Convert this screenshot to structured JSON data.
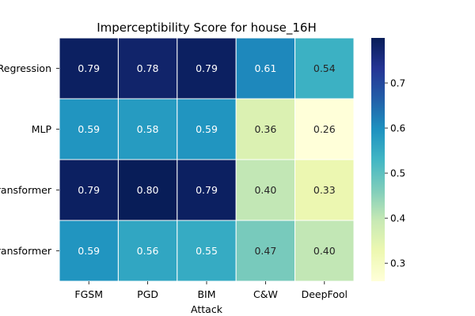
{
  "chart_data": {
    "type": "heatmap",
    "title": "Imperceptibility Score for house_16H",
    "xlabel": "Attack",
    "ylabel": "",
    "x_categories": [
      "FGSM",
      "PGD",
      "BIM",
      "C&W",
      "DeepFool"
    ],
    "y_categories": [
      "Logistic Regression",
      "MLP",
      "TabTransformer",
      "FT-Transformer"
    ],
    "values": [
      [
        0.79,
        0.78,
        0.79,
        0.61,
        0.54
      ],
      [
        0.59,
        0.58,
        0.59,
        0.36,
        0.26
      ],
      [
        0.79,
        0.8,
        0.79,
        0.4,
        0.33
      ],
      [
        0.59,
        0.56,
        0.55,
        0.47,
        0.4
      ]
    ],
    "colormap": "YlGnBu",
    "colorbar": {
      "range": [
        0.26,
        0.8
      ],
      "ticks": [
        0.3,
        0.4,
        0.5,
        0.6,
        0.7
      ]
    },
    "annotations": true
  }
}
